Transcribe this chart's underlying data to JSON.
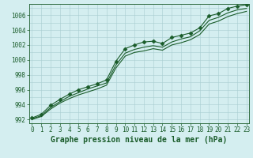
{
  "title": "Graphe pression niveau de la mer (hPa)",
  "xlabel_hours": [
    0,
    1,
    2,
    3,
    4,
    5,
    6,
    7,
    8,
    9,
    10,
    11,
    12,
    13,
    14,
    15,
    16,
    17,
    18,
    19,
    20,
    21,
    22,
    23
  ],
  "ylim": [
    991.5,
    1007.5
  ],
  "yticks": [
    992,
    994,
    996,
    998,
    1000,
    1002,
    1004,
    1006
  ],
  "background_color": "#d4eef0",
  "grid_color": "#a8cdd0",
  "line_color": "#1a5c2a",
  "series1": [
    992.2,
    992.7,
    993.9,
    994.7,
    995.4,
    996.0,
    996.4,
    996.8,
    997.3,
    999.8,
    1001.5,
    1002.0,
    1002.4,
    1002.5,
    1002.2,
    1003.0,
    1003.3,
    1003.6,
    1004.3,
    1005.9,
    1006.2,
    1006.9,
    1007.2,
    1007.4
  ],
  "series2": [
    992.1,
    992.5,
    993.6,
    994.4,
    995.1,
    995.6,
    996.1,
    996.5,
    996.9,
    999.3,
    1000.9,
    1001.4,
    1001.7,
    1001.9,
    1001.7,
    1002.4,
    1002.8,
    1003.1,
    1003.9,
    1005.3,
    1005.7,
    1006.3,
    1006.7,
    1006.9
  ],
  "series3": [
    992.0,
    992.4,
    993.4,
    994.2,
    994.8,
    995.3,
    995.7,
    996.1,
    996.6,
    998.9,
    1000.5,
    1001.0,
    1001.2,
    1001.5,
    1001.3,
    1002.0,
    1002.3,
    1002.7,
    1003.4,
    1004.8,
    1005.2,
    1005.8,
    1006.2,
    1006.5
  ],
  "marker": "D",
  "marker_size": 2.5,
  "line_width": 0.8,
  "title_fontsize": 7,
  "tick_fontsize": 5.5
}
